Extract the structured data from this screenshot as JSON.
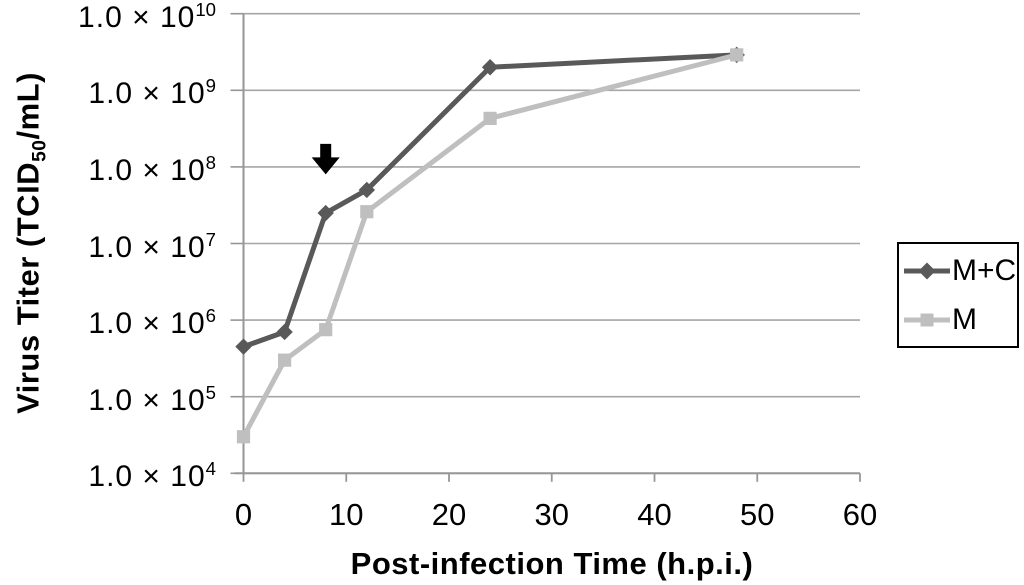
{
  "chart_data": {
    "type": "line",
    "title": "",
    "xlabel": "Post-infection Time (h.p.i.)",
    "ylabel": {
      "prefix": "Virus Titer (TCID",
      "sub": "50",
      "suffix": "/mL)"
    },
    "x": [
      0,
      4,
      8,
      12,
      24,
      48
    ],
    "series": [
      {
        "name": "M+C",
        "marker": "diamond",
        "color": "#595959",
        "values": [
          450000,
          700000,
          25000000,
          50000000,
          2000000000,
          2900000000
        ]
      },
      {
        "name": "M",
        "marker": "square",
        "color": "#bfbfbf",
        "values": [
          30000,
          300000,
          750000,
          26000000,
          430000000,
          2900000000
        ]
      }
    ],
    "xlim": [
      0,
      60
    ],
    "xticks": [
      0,
      10,
      20,
      30,
      40,
      50,
      60
    ],
    "y_scale": "log",
    "ytick_prefix": "1.0 × 10",
    "ytick_exponents": [
      10,
      9,
      8,
      7,
      6,
      5,
      4
    ],
    "ylim_exponents": [
      4,
      10
    ],
    "grid": "horizontal",
    "legend": {
      "position": "right",
      "border": true,
      "entries": [
        "M+C",
        "M"
      ]
    },
    "annotation": {
      "type": "down-arrow",
      "x": 8,
      "value_top": 200000000,
      "value_tip": 80000000,
      "color": "#000000"
    }
  },
  "style": {
    "background": "#ffffff",
    "gridline_color": "#a6a6a6",
    "axis_color": "#969696",
    "text_color": "#000000",
    "legend_border_color": "#000000"
  }
}
